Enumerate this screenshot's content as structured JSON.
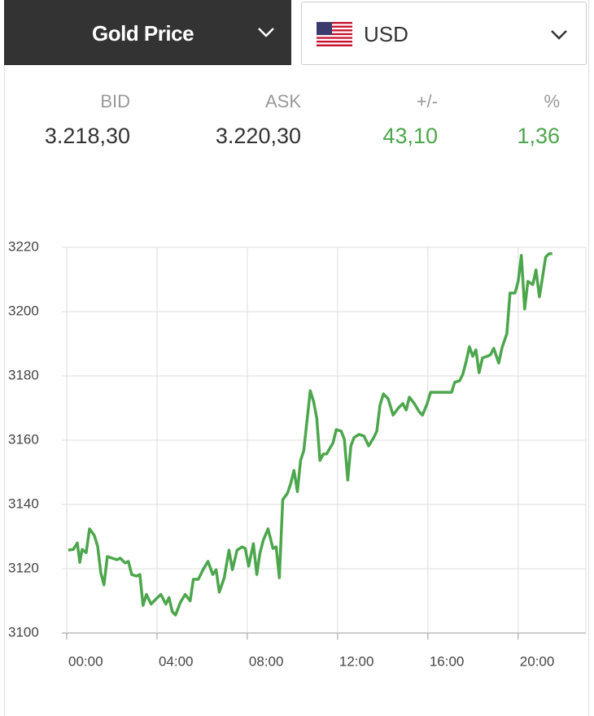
{
  "header": {
    "metal": "Gold Price",
    "currency": "USD"
  },
  "quote": {
    "columns": [
      {
        "label": "BID",
        "value": "3.218,30",
        "color": "#333333"
      },
      {
        "label": "ASK",
        "value": "3.220,30",
        "color": "#333333"
      },
      {
        "label": "+/-",
        "value": "43,10",
        "color": "#4ca64c"
      },
      {
        "label": "%",
        "value": "1,36",
        "color": "#4ca64c"
      }
    ]
  },
  "chart_data": {
    "type": "line",
    "color": "#4ca64c",
    "grid": true,
    "xlim": [
      0,
      23
    ],
    "ylim": [
      3100,
      3220
    ],
    "yticks": [
      3100,
      3120,
      3140,
      3160,
      3180,
      3200,
      3220
    ],
    "xticks": [
      {
        "value": 0,
        "label": "00:00"
      },
      {
        "value": 4,
        "label": "04:00"
      },
      {
        "value": 8,
        "label": "08:00"
      },
      {
        "value": 12,
        "label": "12:00"
      },
      {
        "value": 16,
        "label": "16:00"
      },
      {
        "value": 20,
        "label": "20:00"
      }
    ],
    "x": [
      0.07,
      0.29,
      0.47,
      0.58,
      0.68,
      0.86,
      1.01,
      1.22,
      1.37,
      1.51,
      1.65,
      1.8,
      2.01,
      2.23,
      2.37,
      2.59,
      2.73,
      2.88,
      3.09,
      3.24,
      3.38,
      3.53,
      3.74,
      3.96,
      4.17,
      4.39,
      4.53,
      4.68,
      4.82,
      5.04,
      5.25,
      5.47,
      5.61,
      5.83,
      6.04,
      6.26,
      6.47,
      6.62,
      6.76,
      6.98,
      7.19,
      7.34,
      7.55,
      7.77,
      7.91,
      8.06,
      8.27,
      8.42,
      8.56,
      8.71,
      8.92,
      9.14,
      9.28,
      9.42,
      9.57,
      9.78,
      9.93,
      10.07,
      10.22,
      10.36,
      10.5,
      10.65,
      10.79,
      10.94,
      11.08,
      11.22,
      11.37,
      11.51,
      11.8,
      11.94,
      12.16,
      12.3,
      12.45,
      12.59,
      12.73,
      12.95,
      13.17,
      13.38,
      13.6,
      13.74,
      13.88,
      14.03,
      14.24,
      14.46,
      14.68,
      14.89,
      15.04,
      15.18,
      15.4,
      15.61,
      15.76,
      15.97,
      16.12,
      16.47,
      16.83,
      17.05,
      17.19,
      17.41,
      17.55,
      17.7,
      17.84,
      17.99,
      18.13,
      18.27,
      18.42,
      18.63,
      18.78,
      18.92,
      19.14,
      19.28,
      19.5,
      19.64,
      19.86,
      20,
      20.14,
      20.29,
      20.43,
      20.65,
      20.79,
      20.94,
      21.08,
      21.22,
      21.37,
      21.51
    ],
    "values": [
      3125.8,
      3126,
      3128,
      3122,
      3126,
      3125,
      3132.4,
      3130.4,
      3127,
      3118.7,
      3115,
      3123.8,
      3123.3,
      3122.8,
      3123.3,
      3121.8,
      3122.3,
      3118.2,
      3117.7,
      3118.2,
      3108.6,
      3112,
      3109,
      3110.6,
      3112,
      3109,
      3111,
      3106.6,
      3105.6,
      3109.6,
      3112,
      3110,
      3116.7,
      3116.7,
      3119.7,
      3122.3,
      3118.2,
      3119.7,
      3112.7,
      3117.2,
      3125.8,
      3119.7,
      3125.8,
      3126.8,
      3126.3,
      3120.8,
      3127.8,
      3118.2,
      3124.8,
      3128.9,
      3132.4,
      3126.3,
      3126.8,
      3117.2,
      3141.5,
      3143.5,
      3146.6,
      3150.6,
      3144,
      3153.7,
      3156.7,
      3166.3,
      3175.4,
      3171.9,
      3166.8,
      3153.7,
      3155.7,
      3155.7,
      3159.2,
      3163.3,
      3162.8,
      3160.3,
      3147.6,
      3158.2,
      3160.8,
      3161.8,
      3161.3,
      3158.2,
      3160.8,
      3162.8,
      3170.9,
      3174.4,
      3172.9,
      3167.8,
      3169.9,
      3171.4,
      3169.4,
      3173.4,
      3171.4,
      3168.9,
      3167.8,
      3171.4,
      3174.9,
      3174.9,
      3174.9,
      3174.9,
      3178,
      3178.5,
      3180.5,
      3184.6,
      3189.1,
      3186.1,
      3188.1,
      3181,
      3185.6,
      3186.1,
      3186.6,
      3188.6,
      3184,
      3188.6,
      3193.2,
      3205.8,
      3205.8,
      3209.4,
      3217.5,
      3200.8,
      3209.4,
      3208.4,
      3213,
      3204.6,
      3210.6,
      3217,
      3218,
      3218
    ]
  }
}
